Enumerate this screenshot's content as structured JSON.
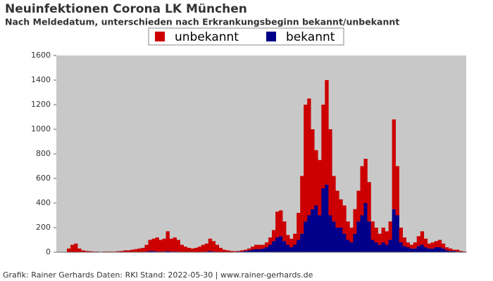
{
  "chart_data": {
    "type": "stacked-bar",
    "title": "Neuinfektionen Corona LK München",
    "subtitle": "Nach Meldedatum, unterschieden nach Erkrankungsbeginn bekannt/unbekannt",
    "footer": "Grafik: Rainer Gerhards Daten: RKI Stand: 2022-05-30 | www.rainer-gerhards.de",
    "categories": [
      null,
      null,
      null,
      null,
      null,
      null,
      null,
      null,
      null,
      null,
      null,
      null,
      null,
      null,
      null,
      null,
      null,
      null,
      null,
      null,
      null,
      null,
      null,
      null,
      null,
      null,
      null,
      null,
      null,
      null,
      null,
      null,
      null,
      null,
      null,
      null,
      null,
      null,
      null,
      null,
      null,
      null,
      null,
      null,
      null,
      null,
      null,
      null,
      null,
      null,
      null,
      null,
      null,
      null,
      null,
      null,
      null,
      null,
      null,
      null,
      null,
      null,
      null,
      null,
      null,
      null,
      null,
      null,
      null,
      null,
      null,
      null,
      null,
      null,
      null,
      null,
      null,
      null,
      null,
      null,
      null,
      null,
      null,
      null,
      null,
      null,
      null,
      null,
      null,
      null,
      null,
      null,
      null,
      null,
      null,
      null,
      null,
      null,
      null,
      null,
      null,
      null,
      null,
      null,
      null,
      null,
      null,
      null,
      null,
      null,
      null,
      null,
      null,
      null,
      null,
      null
    ],
    "series": [
      {
        "name": "bekannt",
        "color": "#00008b",
        "values": [
          0,
          0,
          0,
          0,
          0,
          0,
          0,
          0,
          0,
          0,
          0,
          0,
          0,
          0,
          0,
          0,
          0,
          0,
          0,
          0,
          0,
          0,
          0,
          0,
          0,
          5,
          10,
          10,
          5,
          5,
          5,
          10,
          5,
          5,
          5,
          0,
          0,
          0,
          0,
          0,
          0,
          0,
          5,
          10,
          5,
          0,
          0,
          0,
          0,
          0,
          0,
          5,
          5,
          10,
          15,
          20,
          25,
          25,
          30,
          40,
          60,
          90,
          120,
          130,
          90,
          60,
          40,
          60,
          100,
          150,
          250,
          300,
          350,
          380,
          300,
          520,
          550,
          300,
          250,
          200,
          200,
          150,
          100,
          80,
          150,
          250,
          300,
          400,
          250,
          100,
          80,
          60,
          80,
          60,
          100,
          350,
          300,
          80,
          50,
          40,
          30,
          30,
          50,
          60,
          40,
          30,
          30,
          40,
          40,
          30,
          15,
          10,
          10,
          5,
          5,
          2
        ]
      },
      {
        "name": "unbekannt",
        "color": "#cc0000",
        "values": [
          0,
          0,
          0,
          30,
          60,
          70,
          30,
          15,
          10,
          8,
          5,
          5,
          3,
          5,
          5,
          5,
          5,
          8,
          10,
          15,
          15,
          20,
          25,
          30,
          35,
          55,
          90,
          100,
          115,
          95,
          105,
          160,
          105,
          115,
          95,
          60,
          45,
          35,
          30,
          35,
          45,
          60,
          65,
          100,
          85,
          60,
          35,
          20,
          15,
          10,
          8,
          5,
          10,
          10,
          15,
          25,
          35,
          35,
          30,
          40,
          60,
          90,
          210,
          210,
          160,
          80,
          70,
          90,
          220,
          470,
          950,
          950,
          650,
          450,
          450,
          680,
          850,
          700,
          370,
          300,
          230,
          230,
          150,
          120,
          200,
          250,
          400,
          360,
          320,
          150,
          120,
          90,
          120,
          110,
          150,
          730,
          400,
          120,
          70,
          40,
          30,
          50,
          80,
          110,
          70,
          40,
          50,
          50,
          60,
          40,
          25,
          20,
          10,
          15,
          5,
          3
        ]
      }
    ],
    "ylim": [
      0,
      1600
    ],
    "yticks": [
      0,
      200,
      400,
      600,
      800,
      1000,
      1200,
      1400,
      1600
    ],
    "plot_background": "#c8c8c8"
  }
}
